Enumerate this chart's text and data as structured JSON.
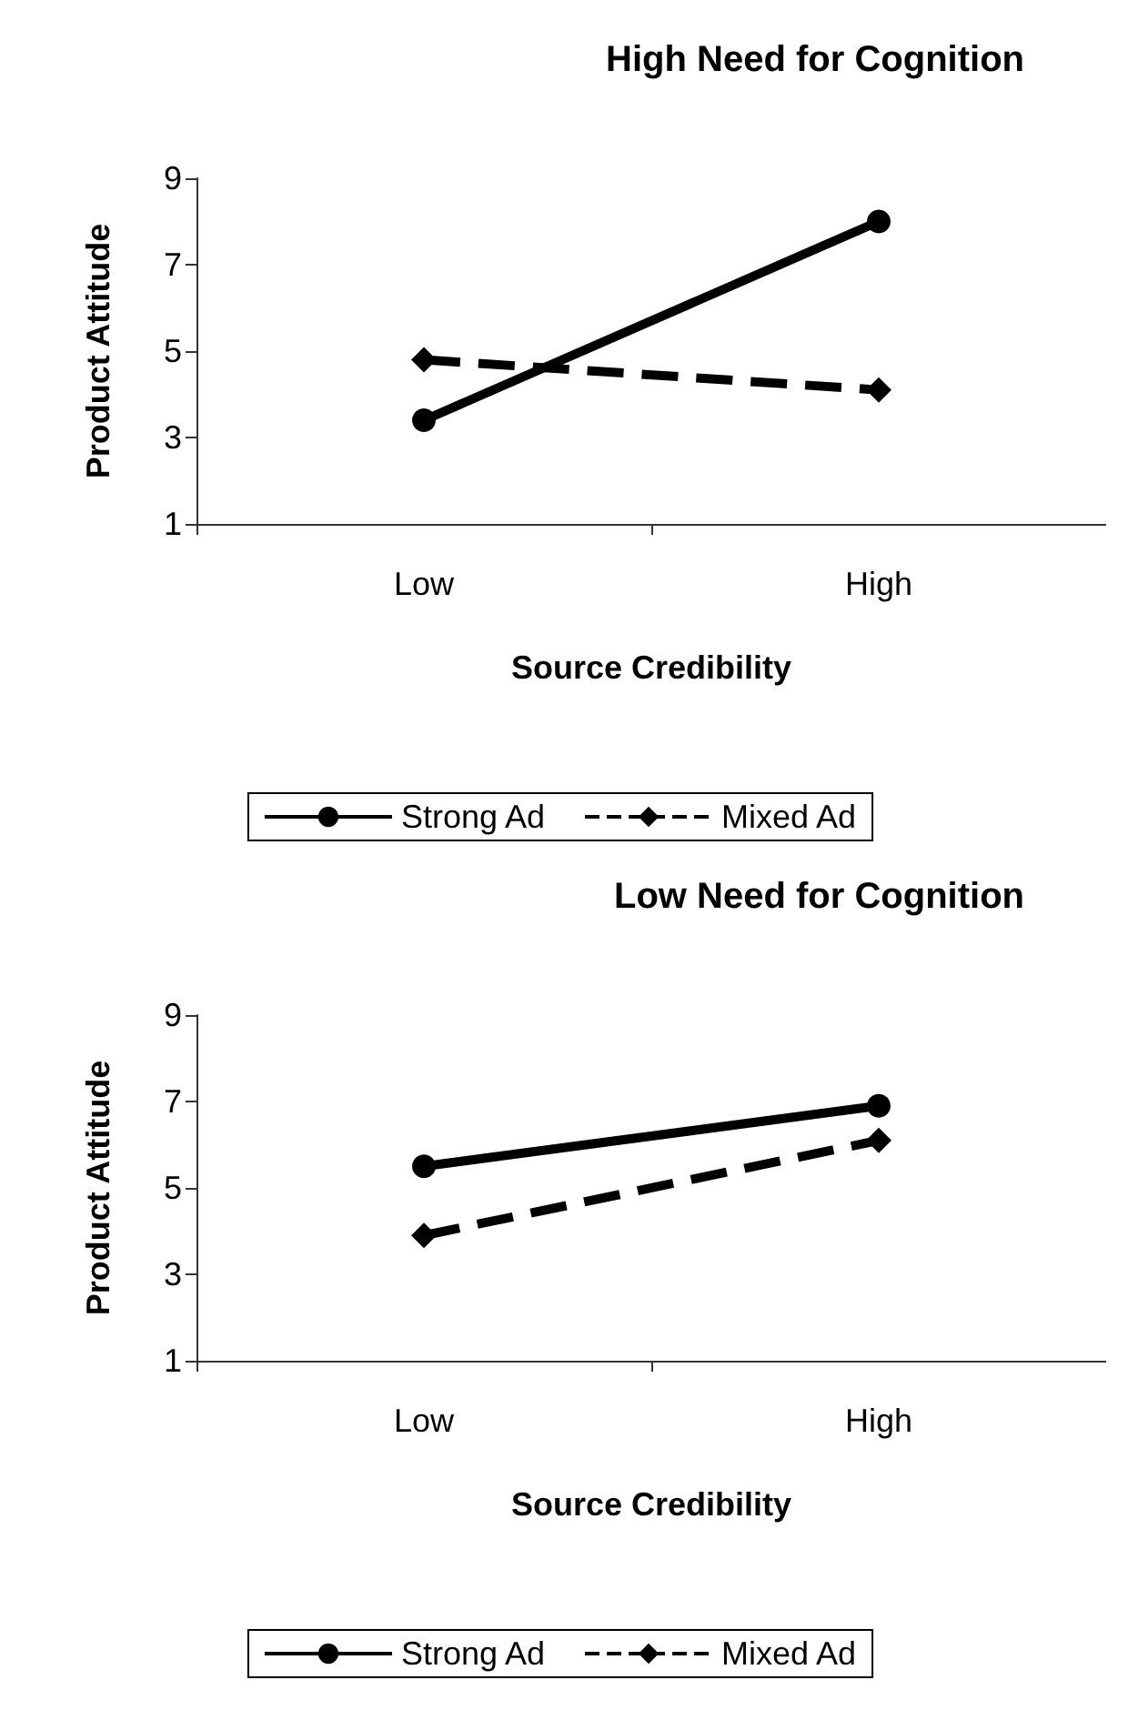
{
  "chart_data": [
    {
      "type": "line",
      "title": "High Need for Cognition",
      "xlabel": "Source Credibility",
      "ylabel": "Product Attitude",
      "categories": [
        "Low",
        "High"
      ],
      "ylim": [
        1,
        9
      ],
      "yticks": [
        1,
        3,
        5,
        7,
        9
      ],
      "grid": false,
      "legend": "bottom",
      "series": [
        {
          "name": "Strong Ad",
          "color": "#000000",
          "values": [
            3.4,
            8.0
          ],
          "marker": "circle",
          "line_style": "solid"
        },
        {
          "name": "Mixed Ad",
          "color": "#000000",
          "values": [
            4.8,
            4.1
          ],
          "marker": "diamond",
          "line_style": "dashed"
        }
      ]
    },
    {
      "type": "line",
      "title": "Low Need for Cognition",
      "xlabel": "Source Credibility",
      "ylabel": "Product Attitude",
      "categories": [
        "Low",
        "High"
      ],
      "ylim": [
        1,
        9
      ],
      "yticks": [
        1,
        3,
        5,
        7,
        9
      ],
      "grid": false,
      "legend": "bottom",
      "series": [
        {
          "name": "Strong Ad",
          "color": "#000000",
          "values": [
            5.5,
            6.9
          ],
          "marker": "circle",
          "line_style": "solid"
        },
        {
          "name": "Mixed Ad",
          "color": "#000000",
          "values": [
            3.9,
            6.1
          ],
          "marker": "diamond",
          "line_style": "dashed"
        }
      ]
    }
  ]
}
